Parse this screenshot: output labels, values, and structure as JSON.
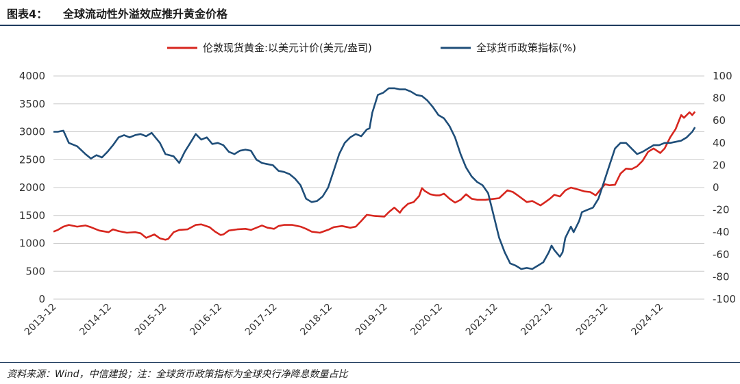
{
  "header": {
    "figure_label": "图表4：",
    "title": "全球流动性外溢效应推升黄金价格"
  },
  "footer": {
    "source": "资料来源：Wind，中信建投；注：全球货币政策指标为全球央行净降息数量占比"
  },
  "colors": {
    "gold": "#d7261e",
    "policy": "#1f4e79",
    "grid": "#c8c8c8",
    "header_rule": "#1f3b5e"
  },
  "chart_data": {
    "type": "line",
    "title": "",
    "legend_position": "top-center",
    "x_ticks": [
      "2013-12",
      "2014-12",
      "2015-12",
      "2016-12",
      "2017-12",
      "2018-12",
      "2019-12",
      "2020-12",
      "2021-12",
      "2022-12",
      "2023-12",
      "2024-12"
    ],
    "y_left": {
      "min": 0,
      "max": 4000,
      "ticks": [
        0,
        500,
        1000,
        1500,
        2000,
        2500,
        3000,
        3500,
        4000
      ]
    },
    "y_right": {
      "min": -100,
      "max": 100,
      "ticks": [
        -100,
        -80,
        -60,
        -40,
        -20,
        0,
        20,
        40,
        60,
        80,
        100
      ]
    },
    "grid": "horizontal",
    "series": [
      {
        "name": "伦敦现货黄金:以美元计价(美元/盎司)",
        "axis": "left",
        "color": "#d7261e",
        "points": [
          [
            2013.92,
            1210
          ],
          [
            2014.0,
            1240
          ],
          [
            2014.1,
            1300
          ],
          [
            2014.2,
            1330
          ],
          [
            2014.35,
            1300
          ],
          [
            2014.5,
            1320
          ],
          [
            2014.6,
            1290
          ],
          [
            2014.75,
            1230
          ],
          [
            2014.92,
            1200
          ],
          [
            2015.0,
            1250
          ],
          [
            2015.1,
            1220
          ],
          [
            2015.25,
            1190
          ],
          [
            2015.4,
            1200
          ],
          [
            2015.5,
            1180
          ],
          [
            2015.6,
            1100
          ],
          [
            2015.75,
            1160
          ],
          [
            2015.85,
            1090
          ],
          [
            2015.95,
            1065
          ],
          [
            2016.0,
            1080
          ],
          [
            2016.1,
            1200
          ],
          [
            2016.2,
            1240
          ],
          [
            2016.35,
            1250
          ],
          [
            2016.5,
            1330
          ],
          [
            2016.6,
            1340
          ],
          [
            2016.75,
            1290
          ],
          [
            2016.85,
            1210
          ],
          [
            2016.95,
            1150
          ],
          [
            2017.0,
            1160
          ],
          [
            2017.1,
            1230
          ],
          [
            2017.25,
            1250
          ],
          [
            2017.4,
            1260
          ],
          [
            2017.5,
            1240
          ],
          [
            2017.6,
            1280
          ],
          [
            2017.7,
            1320
          ],
          [
            2017.8,
            1280
          ],
          [
            2017.92,
            1260
          ],
          [
            2018.0,
            1310
          ],
          [
            2018.1,
            1330
          ],
          [
            2018.25,
            1330
          ],
          [
            2018.4,
            1300
          ],
          [
            2018.5,
            1260
          ],
          [
            2018.6,
            1210
          ],
          [
            2018.75,
            1190
          ],
          [
            2018.92,
            1250
          ],
          [
            2019.0,
            1290
          ],
          [
            2019.15,
            1310
          ],
          [
            2019.3,
            1280
          ],
          [
            2019.4,
            1300
          ],
          [
            2019.5,
            1400
          ],
          [
            2019.6,
            1510
          ],
          [
            2019.75,
            1490
          ],
          [
            2019.92,
            1480
          ],
          [
            2020.0,
            1560
          ],
          [
            2020.1,
            1640
          ],
          [
            2020.2,
            1550
          ],
          [
            2020.25,
            1620
          ],
          [
            2020.35,
            1710
          ],
          [
            2020.45,
            1740
          ],
          [
            2020.55,
            1850
          ],
          [
            2020.6,
            1990
          ],
          [
            2020.65,
            1940
          ],
          [
            2020.75,
            1880
          ],
          [
            2020.85,
            1860
          ],
          [
            2020.92,
            1860
          ],
          [
            2021.0,
            1890
          ],
          [
            2021.1,
            1800
          ],
          [
            2021.2,
            1730
          ],
          [
            2021.3,
            1780
          ],
          [
            2021.4,
            1880
          ],
          [
            2021.5,
            1800
          ],
          [
            2021.6,
            1780
          ],
          [
            2021.75,
            1780
          ],
          [
            2021.92,
            1800
          ],
          [
            2022.0,
            1810
          ],
          [
            2022.15,
            1950
          ],
          [
            2022.25,
            1920
          ],
          [
            2022.35,
            1850
          ],
          [
            2022.5,
            1740
          ],
          [
            2022.6,
            1760
          ],
          [
            2022.75,
            1680
          ],
          [
            2022.85,
            1750
          ],
          [
            2022.92,
            1800
          ],
          [
            2023.0,
            1870
          ],
          [
            2023.1,
            1840
          ],
          [
            2023.2,
            1950
          ],
          [
            2023.3,
            2000
          ],
          [
            2023.45,
            1960
          ],
          [
            2023.55,
            1930
          ],
          [
            2023.65,
            1920
          ],
          [
            2023.75,
            1860
          ],
          [
            2023.85,
            1980
          ],
          [
            2023.92,
            2060
          ],
          [
            2024.0,
            2040
          ],
          [
            2024.1,
            2050
          ],
          [
            2024.2,
            2250
          ],
          [
            2024.3,
            2340
          ],
          [
            2024.4,
            2330
          ],
          [
            2024.5,
            2380
          ],
          [
            2024.6,
            2480
          ],
          [
            2024.7,
            2640
          ],
          [
            2024.8,
            2700
          ],
          [
            2024.92,
            2620
          ],
          [
            2025.0,
            2700
          ],
          [
            2025.1,
            2900
          ],
          [
            2025.2,
            3050
          ],
          [
            2025.3,
            3300
          ],
          [
            2025.35,
            3250
          ],
          [
            2025.45,
            3350
          ],
          [
            2025.5,
            3300
          ],
          [
            2025.55,
            3360
          ]
        ]
      },
      {
        "name": "全球货币政策指标(%)",
        "axis": "right",
        "color": "#1f4e79",
        "points": [
          [
            2013.92,
            50
          ],
          [
            2014.0,
            50
          ],
          [
            2014.1,
            51
          ],
          [
            2014.2,
            40
          ],
          [
            2014.35,
            37
          ],
          [
            2014.5,
            30
          ],
          [
            2014.6,
            26
          ],
          [
            2014.7,
            29
          ],
          [
            2014.8,
            27
          ],
          [
            2014.9,
            32
          ],
          [
            2015.0,
            38
          ],
          [
            2015.1,
            45
          ],
          [
            2015.2,
            47
          ],
          [
            2015.3,
            45
          ],
          [
            2015.4,
            47
          ],
          [
            2015.5,
            48
          ],
          [
            2015.6,
            46
          ],
          [
            2015.7,
            49
          ],
          [
            2015.8,
            43
          ],
          [
            2015.85,
            40
          ],
          [
            2015.95,
            30
          ],
          [
            2016.1,
            28
          ],
          [
            2016.2,
            22
          ],
          [
            2016.3,
            32
          ],
          [
            2016.4,
            40
          ],
          [
            2016.5,
            48
          ],
          [
            2016.6,
            43
          ],
          [
            2016.7,
            45
          ],
          [
            2016.8,
            39
          ],
          [
            2016.9,
            40
          ],
          [
            2017.0,
            38
          ],
          [
            2017.1,
            32
          ],
          [
            2017.2,
            30
          ],
          [
            2017.3,
            33
          ],
          [
            2017.4,
            34
          ],
          [
            2017.5,
            33
          ],
          [
            2017.6,
            25
          ],
          [
            2017.7,
            22
          ],
          [
            2017.8,
            21
          ],
          [
            2017.9,
            20
          ],
          [
            2018.0,
            15
          ],
          [
            2018.1,
            14
          ],
          [
            2018.2,
            12
          ],
          [
            2018.3,
            8
          ],
          [
            2018.4,
            2
          ],
          [
            2018.5,
            -10
          ],
          [
            2018.6,
            -13
          ],
          [
            2018.7,
            -12
          ],
          [
            2018.8,
            -8
          ],
          [
            2018.9,
            0
          ],
          [
            2019.0,
            15
          ],
          [
            2019.1,
            30
          ],
          [
            2019.2,
            40
          ],
          [
            2019.3,
            45
          ],
          [
            2019.4,
            48
          ],
          [
            2019.5,
            46
          ],
          [
            2019.6,
            52
          ],
          [
            2019.65,
            53
          ],
          [
            2019.7,
            67
          ],
          [
            2019.8,
            83
          ],
          [
            2019.9,
            85
          ],
          [
            2020.0,
            89
          ],
          [
            2020.1,
            89
          ],
          [
            2020.2,
            88
          ],
          [
            2020.3,
            88
          ],
          [
            2020.4,
            86
          ],
          [
            2020.5,
            83
          ],
          [
            2020.6,
            82
          ],
          [
            2020.7,
            78
          ],
          [
            2020.8,
            72
          ],
          [
            2020.9,
            65
          ],
          [
            2021.0,
            62
          ],
          [
            2021.1,
            55
          ],
          [
            2021.2,
            45
          ],
          [
            2021.3,
            30
          ],
          [
            2021.4,
            18
          ],
          [
            2021.5,
            10
          ],
          [
            2021.6,
            5
          ],
          [
            2021.7,
            2
          ],
          [
            2021.8,
            -5
          ],
          [
            2021.9,
            -25
          ],
          [
            2022.0,
            -45
          ],
          [
            2022.1,
            -58
          ],
          [
            2022.2,
            -68
          ],
          [
            2022.3,
            -70
          ],
          [
            2022.4,
            -73
          ],
          [
            2022.5,
            -72
          ],
          [
            2022.6,
            -73
          ],
          [
            2022.7,
            -70
          ],
          [
            2022.8,
            -67
          ],
          [
            2022.9,
            -58
          ],
          [
            2022.95,
            -52
          ],
          [
            2023.0,
            -56
          ],
          [
            2023.1,
            -62
          ],
          [
            2023.15,
            -58
          ],
          [
            2023.2,
            -45
          ],
          [
            2023.3,
            -35
          ],
          [
            2023.35,
            -40
          ],
          [
            2023.45,
            -30
          ],
          [
            2023.5,
            -22
          ],
          [
            2023.6,
            -20
          ],
          [
            2023.7,
            -18
          ],
          [
            2023.8,
            -10
          ],
          [
            2023.9,
            5
          ],
          [
            2024.0,
            20
          ],
          [
            2024.1,
            35
          ],
          [
            2024.2,
            40
          ],
          [
            2024.3,
            40
          ],
          [
            2024.4,
            35
          ],
          [
            2024.5,
            30
          ],
          [
            2024.6,
            32
          ],
          [
            2024.7,
            35
          ],
          [
            2024.8,
            38
          ],
          [
            2024.9,
            38
          ],
          [
            2025.0,
            40
          ],
          [
            2025.1,
            40
          ],
          [
            2025.2,
            41
          ],
          [
            2025.3,
            42
          ],
          [
            2025.4,
            45
          ],
          [
            2025.5,
            50
          ],
          [
            2025.55,
            54
          ]
        ]
      }
    ]
  }
}
